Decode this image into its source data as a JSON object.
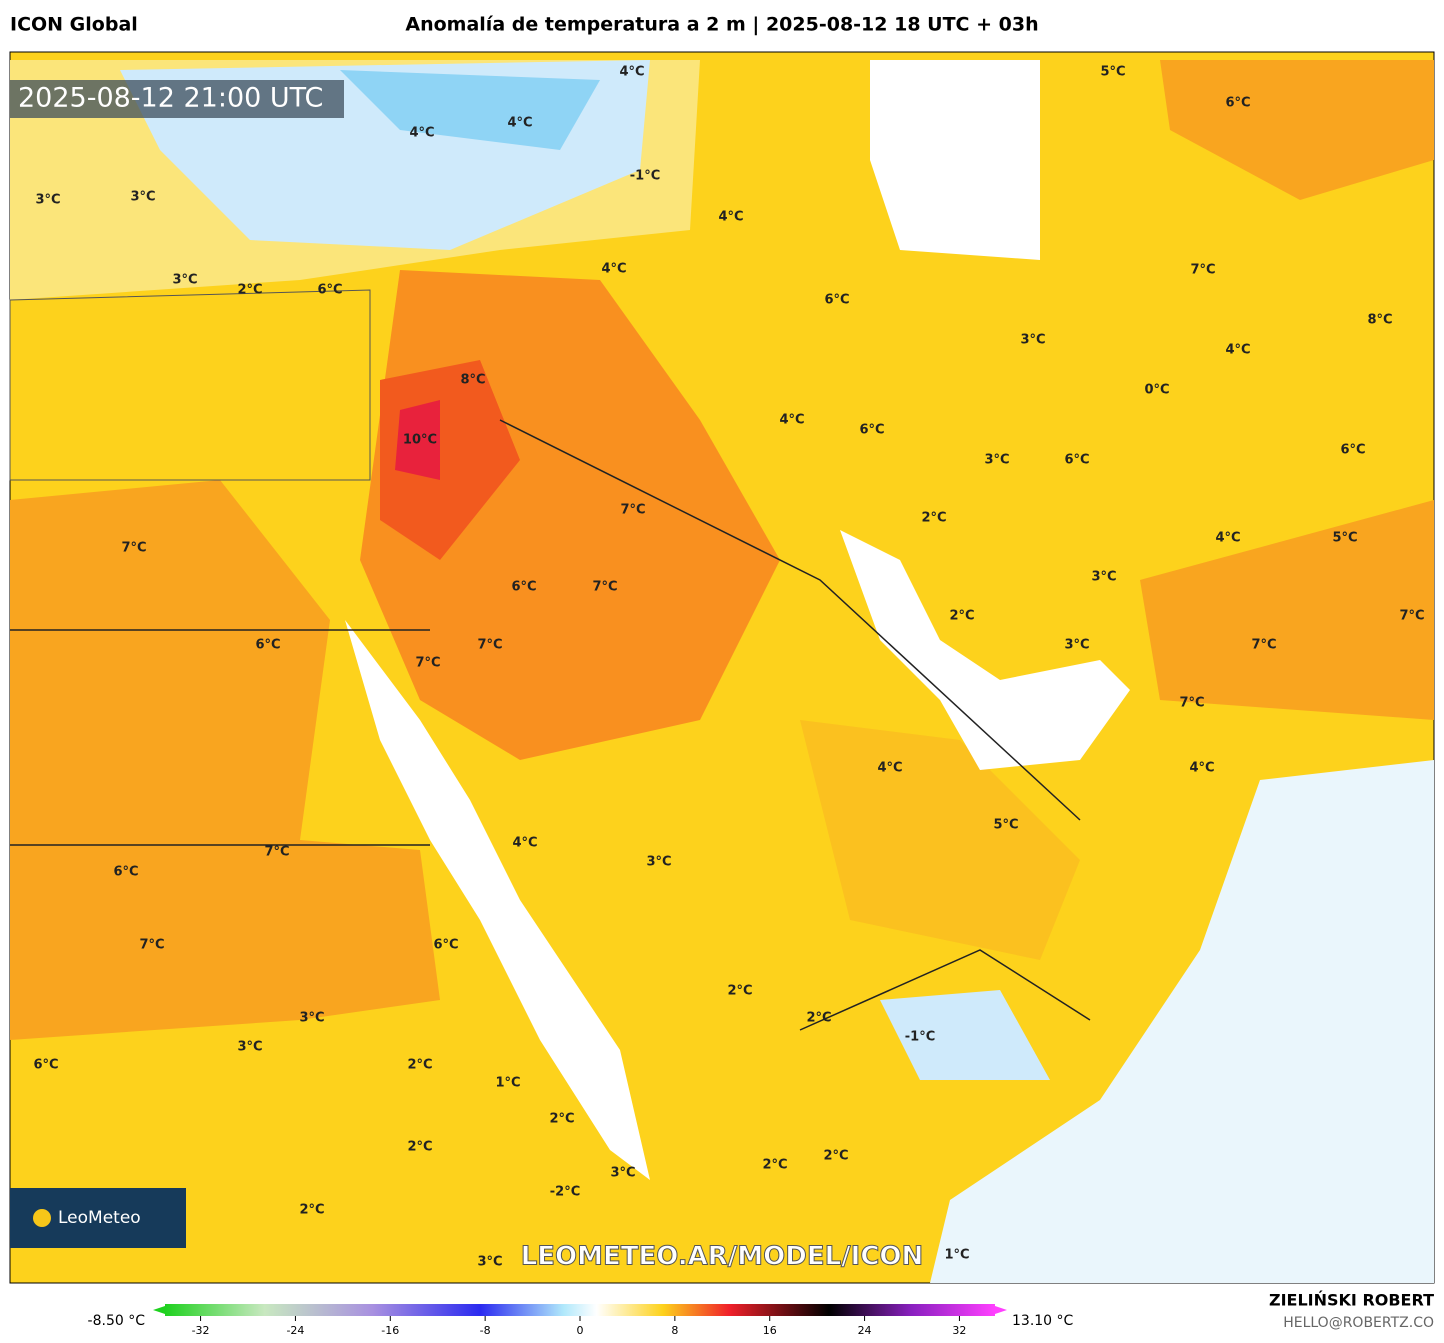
{
  "header": {
    "model": "ICON Global",
    "title": "Anomalía de temperatura a 2 m | 2025-08-12 18 UTC + 03h"
  },
  "map": {
    "timestamp": "2025-08-12 21:00 UTC",
    "watermark": "LEOMETEO.AR/MODEL/ICON",
    "logo": "LeoMeteo",
    "labels": [
      "4°C",
      "5°C",
      "6°C",
      "4°C",
      "4°C",
      "3°C",
      "3°C",
      "-1°C",
      "4°C",
      "3°C",
      "2°C",
      "6°C",
      "4°C",
      "7°C",
      "6°C",
      "3°C",
      "8°C",
      "4°C",
      "8°C",
      "0°C",
      "4°C",
      "6°C",
      "10°C",
      "3°C",
      "6°C",
      "6°C",
      "7°C",
      "2°C",
      "7°C",
      "4°C",
      "5°C",
      "6°C",
      "7°C",
      "3°C",
      "2°C",
      "7°C",
      "6°C",
      "7°C",
      "3°C",
      "7°C",
      "7°C",
      "7°C",
      "4°C",
      "4°C",
      "5°C",
      "4°C",
      "7°C",
      "3°C",
      "6°C",
      "7°C",
      "6°C",
      "2°C",
      "3°C",
      "2°C",
      "-1°C",
      "3°C",
      "2°C",
      "6°C",
      "1°C",
      "2°C",
      "2°C",
      "2°C",
      "2°C",
      "3°C",
      "-2°C",
      "2°C",
      "3°C",
      "1°C"
    ]
  },
  "colorbar": {
    "min_label": "-8.50 °C",
    "max_label": "13.10 °C",
    "lim": [
      -35,
      35
    ],
    "ticks": [
      -32,
      -24,
      -16,
      -8,
      0,
      8,
      16,
      24,
      32
    ]
  },
  "footer": {
    "author": "ZIELIŃSKI ROBERT",
    "contact": "HELLO@ROBERTZ.CO"
  }
}
